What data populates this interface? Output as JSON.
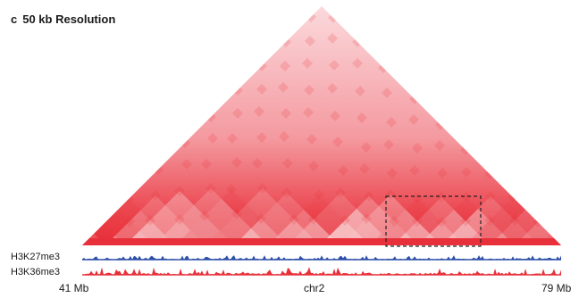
{
  "panel": {
    "letter": "c",
    "title": "50 kb Resolution"
  },
  "colors": {
    "matrix": "#e8303a",
    "matrix_light": "#fde3e5",
    "h3k27me3": "#2d4fa8",
    "h3k36me3": "#e8303a",
    "highlight_box": "#222222"
  },
  "tracks": [
    {
      "name": "H3K27me3"
    },
    {
      "name": "H3K36me3"
    }
  ],
  "axis": {
    "start": "41 Mb",
    "chrom": "chr2",
    "end": "79 Mb"
  }
}
